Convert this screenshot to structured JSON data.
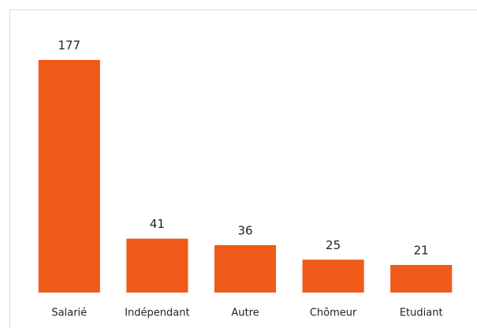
{
  "chart_data": {
    "type": "bar",
    "categories": [
      "Salarié",
      "Indépendant",
      "Autre",
      "Chômeur",
      "Etudiant"
    ],
    "values": [
      177,
      41,
      36,
      25,
      21
    ],
    "color": "#f05a19"
  }
}
